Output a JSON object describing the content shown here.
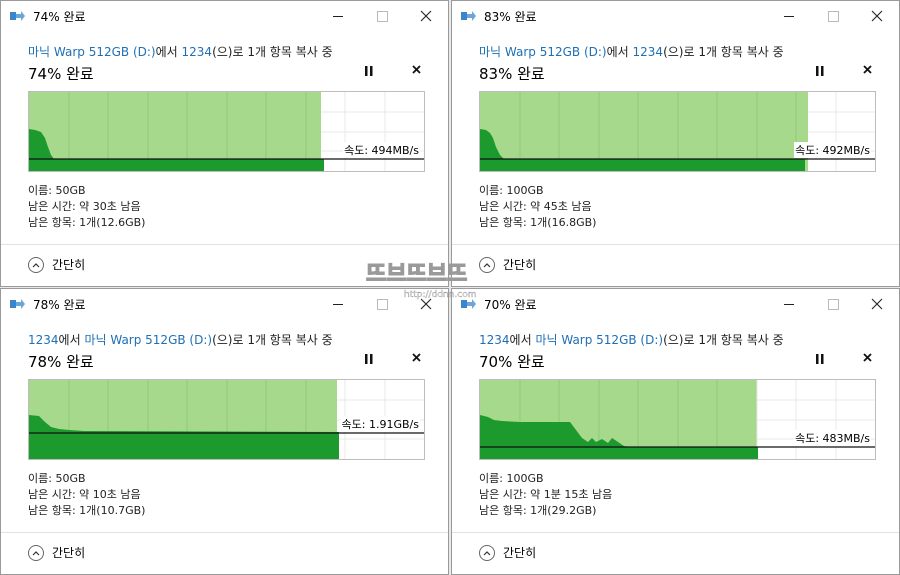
{
  "windows": [
    {
      "id": "tl",
      "title": "74% 완료",
      "desc_source": "마닉 Warp 512GB (D:)",
      "desc_mid": "에서 ",
      "desc_dest": "1234",
      "desc_end": "(으)로 1개 항목 복사 중",
      "source_link": "source",
      "percent_text": "74% 완료",
      "progress": 0.74,
      "speed": "속도: 494MB/s",
      "name_line": "이름: 50GB",
      "time_line": "남은 시간: 약 30초 남음",
      "items_line": "남은 항목: 1개(12.6GB)",
      "collapse_label": "간단히"
    },
    {
      "id": "tr",
      "title": "83% 완료",
      "desc_source": "마닉 Warp 512GB (D:)",
      "desc_mid": "에서 ",
      "desc_dest": "1234",
      "desc_end": "(으)로 1개 항목 복사 중",
      "source_link": "source",
      "percent_text": "83% 완료",
      "progress": 0.83,
      "speed": "속도: 492MB/s",
      "name_line": "이름: 100GB",
      "time_line": "남은 시간: 약 45초 남음",
      "items_line": "남은 항목: 1개(16.8GB)",
      "collapse_label": "간단히"
    },
    {
      "id": "bl",
      "title": "78% 완료",
      "desc_source": "1234",
      "desc_mid": "에서 ",
      "desc_dest": "마닉 Warp 512GB (D:)",
      "desc_end": "(으)로 1개 항목 복사 중",
      "source_link": "both",
      "percent_text": "78% 완료",
      "progress": 0.78,
      "speed": "속도: 1.91GB/s",
      "name_line": "이름: 50GB",
      "time_line": "남은 시간: 약 10초 남음",
      "items_line": "남은 항목: 1개(10.7GB)",
      "collapse_label": "간단히"
    },
    {
      "id": "br",
      "title": "70% 완료",
      "desc_source": "1234",
      "desc_mid": "에서 ",
      "desc_dest": "마닉 Warp 512GB (D:)",
      "desc_end": "(으)로 1개 항목 복사 중",
      "source_link": "both",
      "percent_text": "70% 완료",
      "progress": 0.7,
      "speed": "속도: 483MB/s",
      "name_line": "이름: 100GB",
      "time_line": "남은 시간: 약 1분 15초 남음",
      "items_line": "남은 항목: 1개(29.2GB)",
      "collapse_label": "간단히"
    }
  ],
  "icons": {
    "app": "copy-arrow-icon",
    "minimize": "minimize-icon",
    "maximize": "maximize-icon",
    "close": "close-icon",
    "pause": "pause-icon",
    "stop": "stop-icon",
    "collapse": "chevron-up-icon"
  },
  "colors": {
    "progress_fill": "#a6d98c",
    "speed_area": "#1c9a2e",
    "link": "#1f6fb5"
  },
  "watermark": {
    "title": "뜨브뜨브뜨",
    "url": "http://ddnn.com"
  }
}
